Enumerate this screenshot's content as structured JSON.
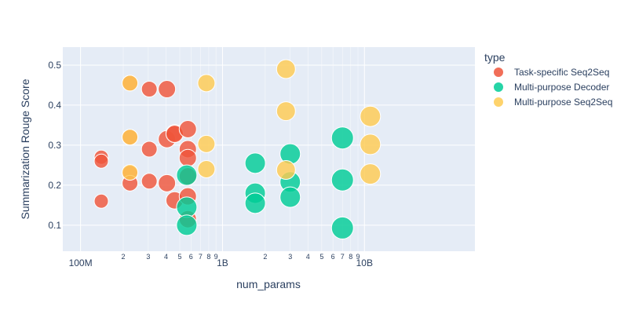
{
  "chart_data": {
    "type": "scatter",
    "title": "",
    "xlabel": "num_params",
    "ylabel": "Summarization Rouge Score",
    "xscale": "log",
    "xlim": [
      75000000,
      60000000000
    ],
    "ylim": [
      0.035,
      0.545
    ],
    "x_major_ticks": [
      {
        "value": 100000000,
        "label": "100M"
      },
      {
        "value": 1000000000,
        "label": "1B"
      },
      {
        "value": 10000000000,
        "label": "10B"
      }
    ],
    "x_minor_ticks": [
      {
        "value": 200000000,
        "label": "2"
      },
      {
        "value": 300000000,
        "label": "3"
      },
      {
        "value": 400000000,
        "label": "4"
      },
      {
        "value": 500000000,
        "label": "5"
      },
      {
        "value": 600000000,
        "label": "6"
      },
      {
        "value": 700000000,
        "label": "7"
      },
      {
        "value": 800000000,
        "label": "8"
      },
      {
        "value": 900000000,
        "label": "9"
      },
      {
        "value": 2000000000,
        "label": "2"
      },
      {
        "value": 3000000000,
        "label": "3"
      },
      {
        "value": 4000000000,
        "label": "4"
      },
      {
        "value": 5000000000,
        "label": "5"
      },
      {
        "value": 6000000000,
        "label": "6"
      },
      {
        "value": 7000000000,
        "label": "7"
      },
      {
        "value": 8000000000,
        "label": "8"
      },
      {
        "value": 9000000000,
        "label": "9"
      }
    ],
    "y_ticks": [
      {
        "value": 0.1,
        "label": "0.1"
      },
      {
        "value": 0.2,
        "label": "0.2"
      },
      {
        "value": 0.3,
        "label": "0.3"
      },
      {
        "value": 0.4,
        "label": "0.4"
      },
      {
        "value": 0.5,
        "label": "0.5"
      }
    ],
    "grid": true,
    "legend": {
      "title": "type",
      "placement": "right"
    },
    "series": [
      {
        "name": "Task-specific Seq2Seq",
        "color": "#EF553B",
        "points": [
          {
            "x": 140000000,
            "y": 0.27,
            "size": 18
          },
          {
            "x": 140000000,
            "y": 0.26,
            "size": 18
          },
          {
            "x": 140000000,
            "y": 0.16,
            "size": 18
          },
          {
            "x": 223000000,
            "y": 0.455,
            "size": 20
          },
          {
            "x": 223000000,
            "y": 0.32,
            "size": 20
          },
          {
            "x": 223000000,
            "y": 0.23,
            "size": 20
          },
          {
            "x": 223000000,
            "y": 0.205,
            "size": 20
          },
          {
            "x": 305000000,
            "y": 0.44,
            "size": 20
          },
          {
            "x": 305000000,
            "y": 0.29,
            "size": 20
          },
          {
            "x": 305000000,
            "y": 0.21,
            "size": 20
          },
          {
            "x": 406000000,
            "y": 0.44,
            "size": 22
          },
          {
            "x": 406000000,
            "y": 0.315,
            "size": 22
          },
          {
            "x": 406000000,
            "y": 0.205,
            "size": 22
          },
          {
            "x": 460000000,
            "y": 0.33,
            "size": 22
          },
          {
            "x": 460000000,
            "y": 0.328,
            "size": 22
          },
          {
            "x": 460000000,
            "y": 0.162,
            "size": 22
          },
          {
            "x": 570000000,
            "y": 0.34,
            "size": 22
          },
          {
            "x": 570000000,
            "y": 0.29,
            "size": 22
          },
          {
            "x": 570000000,
            "y": 0.268,
            "size": 22
          },
          {
            "x": 570000000,
            "y": 0.222,
            "size": 22
          },
          {
            "x": 570000000,
            "y": 0.172,
            "size": 22
          },
          {
            "x": 570000000,
            "y": 0.115,
            "size": 22
          }
        ]
      },
      {
        "name": "Multi-purpose Decoder",
        "color": "#00CC96",
        "points": [
          {
            "x": 560000000,
            "y": 0.225,
            "size": 26
          },
          {
            "x": 560000000,
            "y": 0.145,
            "size": 26
          },
          {
            "x": 560000000,
            "y": 0.1,
            "size": 26
          },
          {
            "x": 1700000000,
            "y": 0.255,
            "size": 26
          },
          {
            "x": 1700000000,
            "y": 0.18,
            "size": 26
          },
          {
            "x": 1700000000,
            "y": 0.155,
            "size": 26
          },
          {
            "x": 3000000000,
            "y": 0.278,
            "size": 26
          },
          {
            "x": 3000000000,
            "y": 0.208,
            "size": 26
          },
          {
            "x": 3000000000,
            "y": 0.17,
            "size": 26
          },
          {
            "x": 7000000000,
            "y": 0.318,
            "size": 28
          },
          {
            "x": 7000000000,
            "y": 0.213,
            "size": 28
          },
          {
            "x": 7000000000,
            "y": 0.093,
            "size": 28
          }
        ]
      },
      {
        "name": "Multi-purpose Seq2Seq",
        "color": "#FECB52",
        "points": [
          {
            "x": 223000000,
            "y": 0.455,
            "size": 20
          },
          {
            "x": 223000000,
            "y": 0.32,
            "size": 20
          },
          {
            "x": 223000000,
            "y": 0.232,
            "size": 20
          },
          {
            "x": 770000000,
            "y": 0.455,
            "size": 22
          },
          {
            "x": 770000000,
            "y": 0.303,
            "size": 22
          },
          {
            "x": 770000000,
            "y": 0.24,
            "size": 22
          },
          {
            "x": 2800000000,
            "y": 0.49,
            "size": 24
          },
          {
            "x": 2800000000,
            "y": 0.385,
            "size": 24
          },
          {
            "x": 2800000000,
            "y": 0.238,
            "size": 24
          },
          {
            "x": 11000000000,
            "y": 0.372,
            "size": 26
          },
          {
            "x": 11000000000,
            "y": 0.302,
            "size": 26
          },
          {
            "x": 11000000000,
            "y": 0.228,
            "size": 26
          }
        ]
      }
    ]
  }
}
